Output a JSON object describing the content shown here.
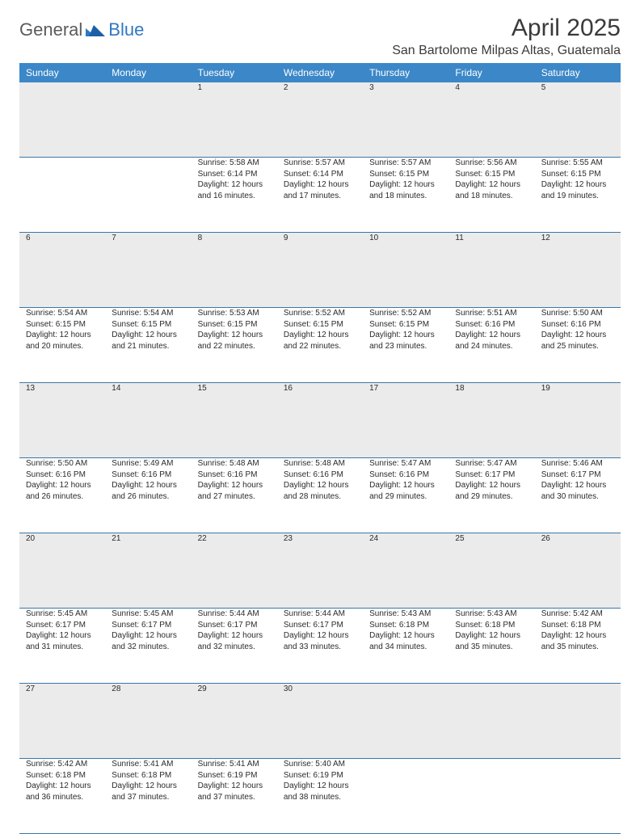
{
  "brand": {
    "general": "General",
    "blue": "Blue"
  },
  "title": "April 2025",
  "location": "San Bartolome Milpas Altas, Guatemala",
  "colors": {
    "header_bg": "#3b87c8",
    "header_text": "#ffffff",
    "daynum_bg": "#ebebeb",
    "row_border": "#3b76a8",
    "brand_gray": "#5b5b5b",
    "brand_blue": "#2f78c2"
  },
  "day_headers": [
    "Sunday",
    "Monday",
    "Tuesday",
    "Wednesday",
    "Thursday",
    "Friday",
    "Saturday"
  ],
  "weeks": [
    {
      "nums": [
        "",
        "",
        "1",
        "2",
        "3",
        "4",
        "5"
      ],
      "cells": [
        null,
        null,
        {
          "sunrise": "Sunrise: 5:58 AM",
          "sunset": "Sunset: 6:14 PM",
          "day1": "Daylight: 12 hours",
          "day2": "and 16 minutes."
        },
        {
          "sunrise": "Sunrise: 5:57 AM",
          "sunset": "Sunset: 6:14 PM",
          "day1": "Daylight: 12 hours",
          "day2": "and 17 minutes."
        },
        {
          "sunrise": "Sunrise: 5:57 AM",
          "sunset": "Sunset: 6:15 PM",
          "day1": "Daylight: 12 hours",
          "day2": "and 18 minutes."
        },
        {
          "sunrise": "Sunrise: 5:56 AM",
          "sunset": "Sunset: 6:15 PM",
          "day1": "Daylight: 12 hours",
          "day2": "and 18 minutes."
        },
        {
          "sunrise": "Sunrise: 5:55 AM",
          "sunset": "Sunset: 6:15 PM",
          "day1": "Daylight: 12 hours",
          "day2": "and 19 minutes."
        }
      ]
    },
    {
      "nums": [
        "6",
        "7",
        "8",
        "9",
        "10",
        "11",
        "12"
      ],
      "cells": [
        {
          "sunrise": "Sunrise: 5:54 AM",
          "sunset": "Sunset: 6:15 PM",
          "day1": "Daylight: 12 hours",
          "day2": "and 20 minutes."
        },
        {
          "sunrise": "Sunrise: 5:54 AM",
          "sunset": "Sunset: 6:15 PM",
          "day1": "Daylight: 12 hours",
          "day2": "and 21 minutes."
        },
        {
          "sunrise": "Sunrise: 5:53 AM",
          "sunset": "Sunset: 6:15 PM",
          "day1": "Daylight: 12 hours",
          "day2": "and 22 minutes."
        },
        {
          "sunrise": "Sunrise: 5:52 AM",
          "sunset": "Sunset: 6:15 PM",
          "day1": "Daylight: 12 hours",
          "day2": "and 22 minutes."
        },
        {
          "sunrise": "Sunrise: 5:52 AM",
          "sunset": "Sunset: 6:15 PM",
          "day1": "Daylight: 12 hours",
          "day2": "and 23 minutes."
        },
        {
          "sunrise": "Sunrise: 5:51 AM",
          "sunset": "Sunset: 6:16 PM",
          "day1": "Daylight: 12 hours",
          "day2": "and 24 minutes."
        },
        {
          "sunrise": "Sunrise: 5:50 AM",
          "sunset": "Sunset: 6:16 PM",
          "day1": "Daylight: 12 hours",
          "day2": "and 25 minutes."
        }
      ]
    },
    {
      "nums": [
        "13",
        "14",
        "15",
        "16",
        "17",
        "18",
        "19"
      ],
      "cells": [
        {
          "sunrise": "Sunrise: 5:50 AM",
          "sunset": "Sunset: 6:16 PM",
          "day1": "Daylight: 12 hours",
          "day2": "and 26 minutes."
        },
        {
          "sunrise": "Sunrise: 5:49 AM",
          "sunset": "Sunset: 6:16 PM",
          "day1": "Daylight: 12 hours",
          "day2": "and 26 minutes."
        },
        {
          "sunrise": "Sunrise: 5:48 AM",
          "sunset": "Sunset: 6:16 PM",
          "day1": "Daylight: 12 hours",
          "day2": "and 27 minutes."
        },
        {
          "sunrise": "Sunrise: 5:48 AM",
          "sunset": "Sunset: 6:16 PM",
          "day1": "Daylight: 12 hours",
          "day2": "and 28 minutes."
        },
        {
          "sunrise": "Sunrise: 5:47 AM",
          "sunset": "Sunset: 6:16 PM",
          "day1": "Daylight: 12 hours",
          "day2": "and 29 minutes."
        },
        {
          "sunrise": "Sunrise: 5:47 AM",
          "sunset": "Sunset: 6:17 PM",
          "day1": "Daylight: 12 hours",
          "day2": "and 29 minutes."
        },
        {
          "sunrise": "Sunrise: 5:46 AM",
          "sunset": "Sunset: 6:17 PM",
          "day1": "Daylight: 12 hours",
          "day2": "and 30 minutes."
        }
      ]
    },
    {
      "nums": [
        "20",
        "21",
        "22",
        "23",
        "24",
        "25",
        "26"
      ],
      "cells": [
        {
          "sunrise": "Sunrise: 5:45 AM",
          "sunset": "Sunset: 6:17 PM",
          "day1": "Daylight: 12 hours",
          "day2": "and 31 minutes."
        },
        {
          "sunrise": "Sunrise: 5:45 AM",
          "sunset": "Sunset: 6:17 PM",
          "day1": "Daylight: 12 hours",
          "day2": "and 32 minutes."
        },
        {
          "sunrise": "Sunrise: 5:44 AM",
          "sunset": "Sunset: 6:17 PM",
          "day1": "Daylight: 12 hours",
          "day2": "and 32 minutes."
        },
        {
          "sunrise": "Sunrise: 5:44 AM",
          "sunset": "Sunset: 6:17 PM",
          "day1": "Daylight: 12 hours",
          "day2": "and 33 minutes."
        },
        {
          "sunrise": "Sunrise: 5:43 AM",
          "sunset": "Sunset: 6:18 PM",
          "day1": "Daylight: 12 hours",
          "day2": "and 34 minutes."
        },
        {
          "sunrise": "Sunrise: 5:43 AM",
          "sunset": "Sunset: 6:18 PM",
          "day1": "Daylight: 12 hours",
          "day2": "and 35 minutes."
        },
        {
          "sunrise": "Sunrise: 5:42 AM",
          "sunset": "Sunset: 6:18 PM",
          "day1": "Daylight: 12 hours",
          "day2": "and 35 minutes."
        }
      ]
    },
    {
      "nums": [
        "27",
        "28",
        "29",
        "30",
        "",
        "",
        ""
      ],
      "cells": [
        {
          "sunrise": "Sunrise: 5:42 AM",
          "sunset": "Sunset: 6:18 PM",
          "day1": "Daylight: 12 hours",
          "day2": "and 36 minutes."
        },
        {
          "sunrise": "Sunrise: 5:41 AM",
          "sunset": "Sunset: 6:18 PM",
          "day1": "Daylight: 12 hours",
          "day2": "and 37 minutes."
        },
        {
          "sunrise": "Sunrise: 5:41 AM",
          "sunset": "Sunset: 6:19 PM",
          "day1": "Daylight: 12 hours",
          "day2": "and 37 minutes."
        },
        {
          "sunrise": "Sunrise: 5:40 AM",
          "sunset": "Sunset: 6:19 PM",
          "day1": "Daylight: 12 hours",
          "day2": "and 38 minutes."
        },
        null,
        null,
        null
      ]
    }
  ]
}
